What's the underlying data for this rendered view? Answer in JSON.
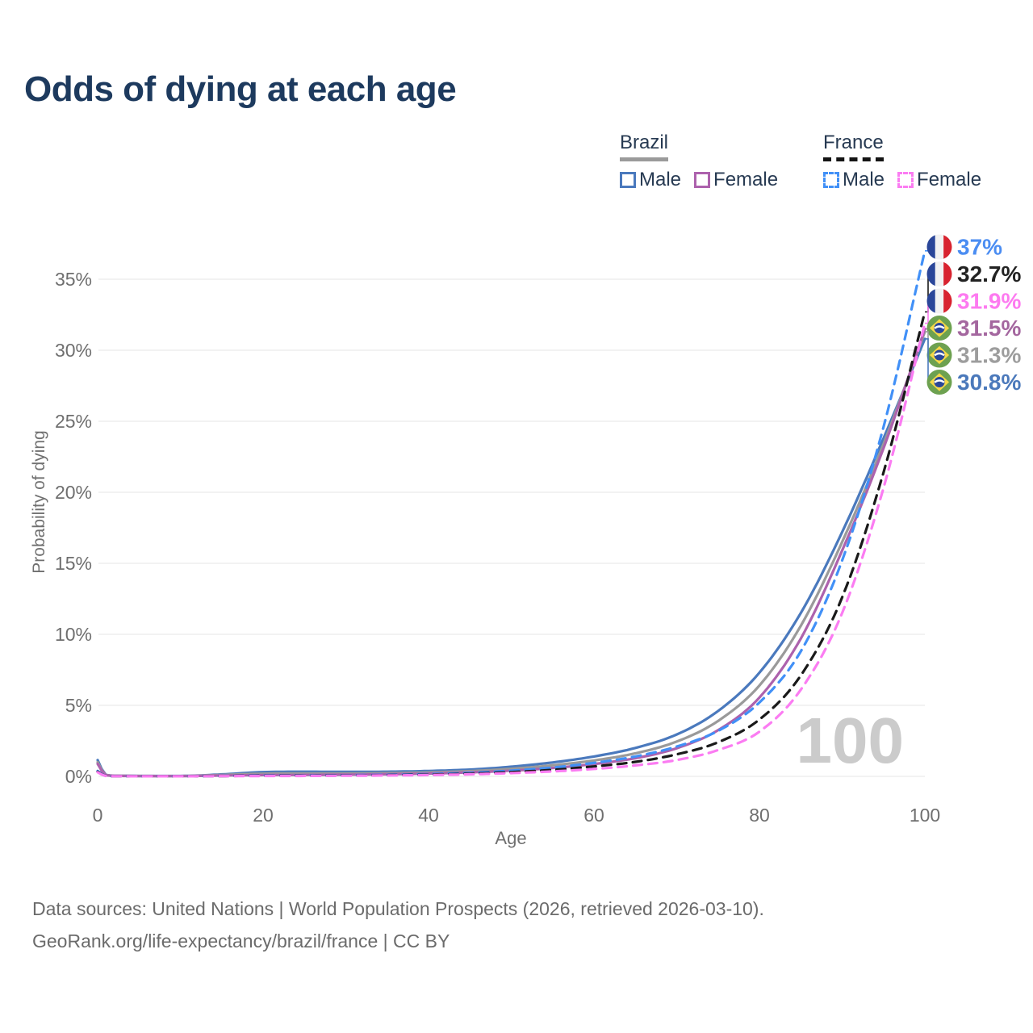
{
  "page": {
    "title": "Odds of dying at each age",
    "watermark": "100"
  },
  "legend": {
    "groups": [
      {
        "label": "Brazil",
        "line_style": "solid",
        "line_color": "#9a9a9a",
        "items": [
          {
            "label": "Male",
            "color": "#4a79bd",
            "style": "solid"
          },
          {
            "label": "Female",
            "color": "#ad62ad",
            "style": "solid"
          }
        ]
      },
      {
        "label": "France",
        "line_style": "dashed",
        "line_color": "#141414",
        "items": [
          {
            "label": "Male",
            "color": "#4190f7",
            "style": "dashed"
          },
          {
            "label": "Female",
            "color": "#fb7cf2",
            "style": "dashed"
          }
        ]
      }
    ]
  },
  "chart_data": {
    "type": "line",
    "title": "Odds of dying at each age",
    "xlabel": "Age",
    "ylabel": "Probability of dying",
    "xlim": [
      0,
      100
    ],
    "ylim": [
      0,
      37.5
    ],
    "x_ticks": [
      0,
      20,
      40,
      60,
      80,
      100
    ],
    "y_ticks": [
      {
        "value": 0,
        "label": "0%"
      },
      {
        "value": 5,
        "label": "5%"
      },
      {
        "value": 10,
        "label": "10%"
      },
      {
        "value": 15,
        "label": "15%"
      },
      {
        "value": 20,
        "label": "20%"
      },
      {
        "value": 25,
        "label": "25%"
      },
      {
        "value": 30,
        "label": "30%"
      },
      {
        "value": 35,
        "label": "35%"
      }
    ],
    "grid": true,
    "grid_color": "#ebebeb",
    "axis_text_color": "#6f6f6f",
    "legend_position": "top-right",
    "x": [
      0,
      1,
      3,
      5,
      10,
      15,
      20,
      25,
      30,
      35,
      40,
      45,
      50,
      55,
      60,
      65,
      70,
      75,
      80,
      85,
      90,
      95,
      100
    ],
    "series": [
      {
        "name": "Brazil Male",
        "country": "Brazil",
        "sex": "Male",
        "flag": "brazil",
        "color": "#4a79bd",
        "dashed": false,
        "end_label": "30.8%",
        "end_value": 30.8,
        "label_color": "#4b79bb",
        "values": [
          1.15,
          0.1,
          0.04,
          0.03,
          0.03,
          0.14,
          0.3,
          0.33,
          0.32,
          0.33,
          0.38,
          0.48,
          0.68,
          0.98,
          1.4,
          2.0,
          2.95,
          4.6,
          7.3,
          11.5,
          17.2,
          23.8,
          30.8
        ]
      },
      {
        "name": "Brazil Both sexes",
        "country": "Brazil",
        "sex": "Both",
        "flag": "brazil",
        "color": "#9a9a9a",
        "dashed": false,
        "end_label": "31.3%",
        "end_value": 31.3,
        "label_color": "#9d9d9d",
        "values": [
          1.0,
          0.09,
          0.035,
          0.027,
          0.025,
          0.1,
          0.19,
          0.21,
          0.21,
          0.23,
          0.28,
          0.37,
          0.53,
          0.78,
          1.12,
          1.62,
          2.45,
          3.9,
          6.4,
          10.6,
          16.5,
          23.4,
          31.3
        ]
      },
      {
        "name": "Brazil Female",
        "country": "Brazil",
        "sex": "Female",
        "flag": "brazil",
        "color": "#ad62ad",
        "dashed": false,
        "end_label": "31.5%",
        "end_value": 31.5,
        "label_color": "#a4679f",
        "values": [
          0.88,
          0.08,
          0.03,
          0.024,
          0.022,
          0.06,
          0.09,
          0.1,
          0.12,
          0.15,
          0.2,
          0.28,
          0.4,
          0.59,
          0.87,
          1.28,
          1.98,
          3.25,
          5.55,
          9.7,
          15.9,
          23.1,
          31.5
        ]
      },
      {
        "name": "France Male",
        "country": "France",
        "sex": "Male",
        "flag": "france",
        "color": "#4190f7",
        "dashed": true,
        "end_label": "37%",
        "end_value": 37.0,
        "label_color": "#4b8df2",
        "values": [
          0.38,
          0.03,
          0.012,
          0.01,
          0.01,
          0.03,
          0.06,
          0.07,
          0.08,
          0.11,
          0.16,
          0.25,
          0.4,
          0.62,
          0.95,
          1.4,
          2.1,
          3.2,
          5.2,
          8.8,
          15.2,
          24.6,
          37.0
        ]
      },
      {
        "name": "France Both sexes",
        "country": "France",
        "sex": "Both",
        "flag": "france",
        "color": "#1a1a1a",
        "dashed": true,
        "end_label": "32.7%",
        "end_value": 32.7,
        "label_color": "#222222",
        "values": [
          0.33,
          0.027,
          0.01,
          0.009,
          0.008,
          0.022,
          0.045,
          0.052,
          0.062,
          0.085,
          0.125,
          0.19,
          0.3,
          0.46,
          0.7,
          1.02,
          1.55,
          2.4,
          4.0,
          7.1,
          12.6,
          21.4,
          32.7
        ]
      },
      {
        "name": "France Female",
        "country": "France",
        "sex": "Female",
        "flag": "france",
        "color": "#fb7cf2",
        "dashed": true,
        "end_label": "31.9%",
        "end_value": 31.9,
        "label_color": "#fd7af0",
        "values": [
          0.29,
          0.024,
          0.009,
          0.008,
          0.007,
          0.016,
          0.026,
          0.032,
          0.045,
          0.065,
          0.095,
          0.145,
          0.23,
          0.35,
          0.52,
          0.77,
          1.15,
          1.85,
          3.15,
          6.1,
          11.5,
          20.3,
          31.9
        ]
      }
    ],
    "flag_colors": {
      "france_blue": "#2a4699",
      "france_white": "#f2f2f2",
      "france_red": "#d8232f",
      "brazil_green": "#6da150",
      "brazil_yellow": "#f5d848",
      "brazil_blue": "#2a4699",
      "brazil_band": "#ffffff"
    }
  },
  "watermark_color": "#cbcbcb",
  "footer": {
    "line1": "Data sources: United Nations | World Population Prospects (2026, retrieved 2026-03-10).",
    "line2": "GeoRank.org/life-expectancy/brazil/france | CC BY"
  }
}
